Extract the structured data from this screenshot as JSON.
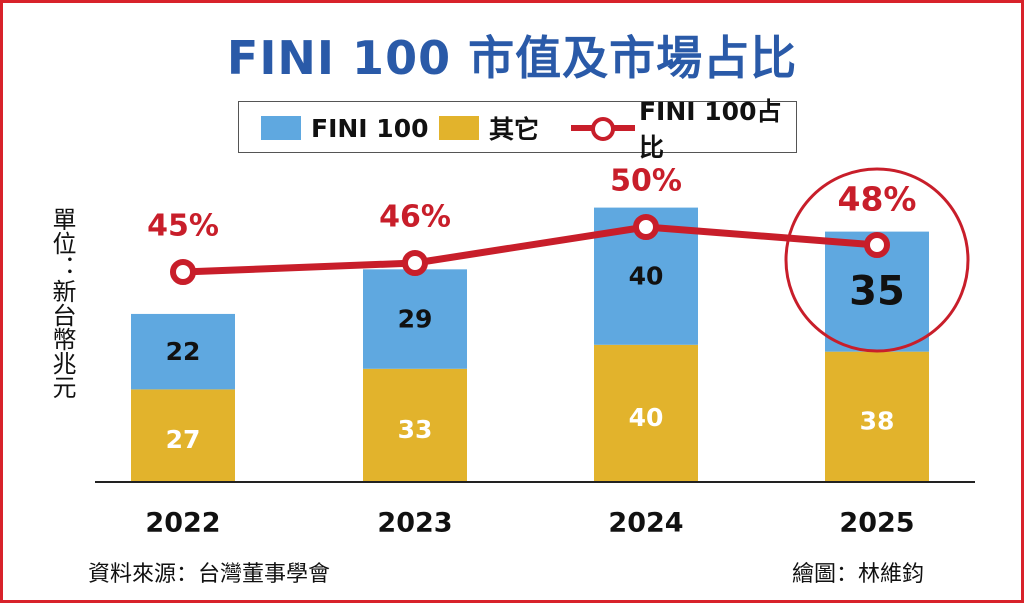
{
  "header": {
    "title": "FINI 100  市值及市場占比"
  },
  "legend": {
    "items": [
      {
        "label": "FINI 100"
      },
      {
        "label": "其它"
      },
      {
        "label": "FINI 100占比"
      }
    ]
  },
  "axis": {
    "ylabel": "單位：新台幣兆元"
  },
  "footer": {
    "source": "資料來源：台灣董事學會",
    "credit": "繪圖：林維鈞"
  },
  "colors": {
    "fini": "#5fa8e0",
    "other": "#e2b32c",
    "share": "#c81e2a",
    "frame": "#d8222a",
    "title": "#2a5aa8"
  },
  "chart_data": {
    "type": "bar",
    "stacked": true,
    "categories": [
      "2022",
      "2023",
      "2024",
      "2025"
    ],
    "series": [
      {
        "name": "其它",
        "values": [
          27,
          33,
          40,
          38
        ]
      },
      {
        "name": "FINI 100",
        "values": [
          22,
          29,
          40,
          35
        ]
      }
    ],
    "line_series": {
      "name": "FINI 100占比",
      "values": [
        45,
        46,
        50,
        48
      ],
      "labels": [
        "45%",
        "46%",
        "50%",
        "48%"
      ]
    },
    "highlight": {
      "category": "2025"
    },
    "xlabel": "",
    "ylabel": "單位：新台幣兆元",
    "ylim": [
      0,
      80
    ],
    "grid": false,
    "legend": "top"
  }
}
